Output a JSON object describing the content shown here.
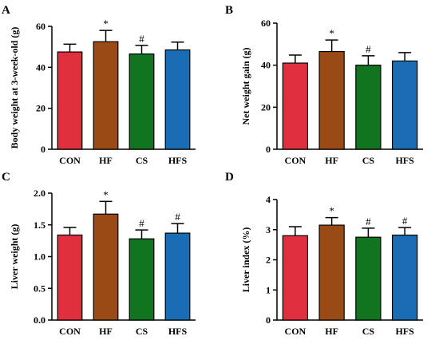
{
  "colors": {
    "CON": "#e0303d",
    "HF": "#9a4a14",
    "CS": "#11741f",
    "HFS": "#1a6db2"
  },
  "chart_data": [
    {
      "panel": "A",
      "type": "bar",
      "ylabel": "Body weight at 3-week-old (g)",
      "categories": [
        "CON",
        "HF",
        "CS",
        "HFS"
      ],
      "values": [
        47.5,
        52.5,
        46.5,
        48.5
      ],
      "errors": [
        3.8,
        5.5,
        4.2,
        3.8
      ],
      "annotations": [
        "",
        "*",
        "#",
        ""
      ],
      "ylim": [
        0,
        60
      ],
      "yticks": [
        0,
        20,
        40,
        60
      ],
      "ytick_labels": [
        "0",
        "20",
        "40",
        "60"
      ]
    },
    {
      "panel": "B",
      "type": "bar",
      "ylabel": "Net weight gain (g)",
      "categories": [
        "CON",
        "HF",
        "CS",
        "HFS"
      ],
      "values": [
        41,
        46.5,
        40,
        42
      ],
      "errors": [
        3.8,
        5.5,
        4.5,
        4
      ],
      "annotations": [
        "",
        "*",
        "#",
        ""
      ],
      "ylim": [
        0,
        60
      ],
      "yticks": [
        0,
        20,
        40,
        60
      ],
      "ytick_labels": [
        "0",
        "20",
        "40",
        "60"
      ]
    },
    {
      "panel": "C",
      "type": "bar",
      "ylabel": "Liver weight (g)",
      "categories": [
        "CON",
        "HF",
        "CS",
        "HFS"
      ],
      "values": [
        1.34,
        1.67,
        1.28,
        1.37
      ],
      "errors": [
        0.12,
        0.2,
        0.14,
        0.15
      ],
      "annotations": [
        "",
        "*",
        "#",
        "#"
      ],
      "ylim": [
        0,
        2.0
      ],
      "yticks": [
        0,
        0.5,
        1.0,
        1.5,
        2.0
      ],
      "ytick_labels": [
        "0.0",
        "0.5",
        "1.0",
        "1.5",
        "2.0"
      ]
    },
    {
      "panel": "D",
      "type": "bar",
      "ylabel": "Liver index (%)",
      "categories": [
        "CON",
        "HF",
        "CS",
        "HFS"
      ],
      "values": [
        2.8,
        3.15,
        2.75,
        2.82
      ],
      "errors": [
        0.3,
        0.25,
        0.3,
        0.25
      ],
      "annotations": [
        "",
        "*",
        "#",
        "#"
      ],
      "ylim": [
        0,
        4
      ],
      "yticks": [
        0,
        1,
        2,
        3,
        4
      ],
      "ytick_labels": [
        "0",
        "1",
        "2",
        "3",
        "4"
      ]
    }
  ]
}
